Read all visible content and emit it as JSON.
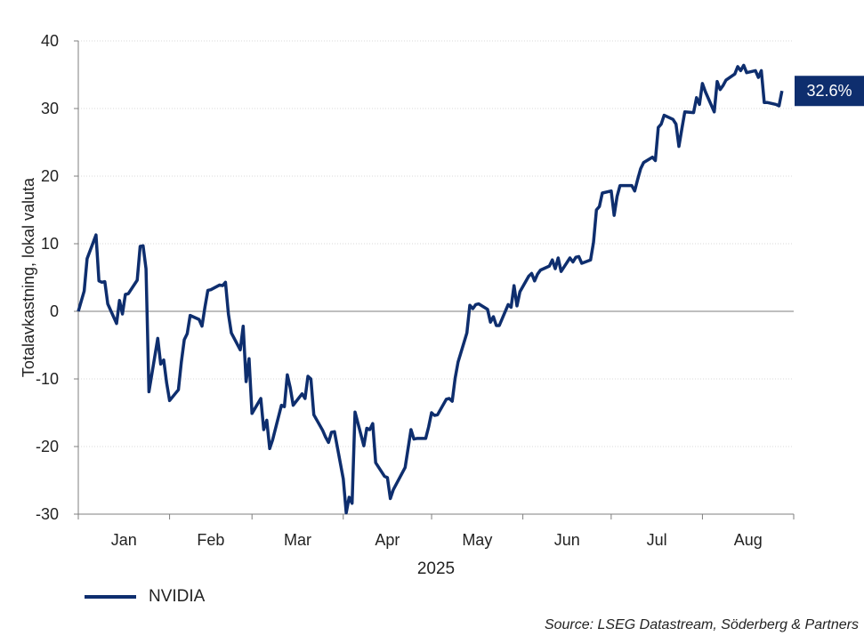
{
  "chart_data": {
    "type": "line",
    "ylabel": "Totalavkastning, lokal valuta",
    "xlabel": "2025",
    "ylim": [
      -30,
      40
    ],
    "yticks": [
      -30,
      -20,
      -10,
      0,
      10,
      20,
      30,
      40
    ],
    "ytick_labels": [
      "-30",
      "-20",
      "-10",
      "0",
      "10",
      "20",
      "30",
      "40"
    ],
    "x_ticks": [
      "Jan",
      "Feb",
      "Mar",
      "Apr",
      "May",
      "Jun",
      "Jul",
      "Aug"
    ],
    "grid": "horizontal",
    "zero_line": true,
    "legend_position": "bottom-left",
    "end_label": "32.6%",
    "series": [
      {
        "name": "NVIDIA",
        "color": "#0e2e6e",
        "points": [
          [
            "2024-12-31",
            0
          ],
          [
            "2025-01-02",
            3
          ],
          [
            "2025-01-03",
            7.8
          ],
          [
            "2025-01-06",
            11.3
          ],
          [
            "2025-01-07",
            4.5
          ],
          [
            "2025-01-08",
            4.3
          ],
          [
            "2025-01-09",
            4.4
          ],
          [
            "2025-01-10",
            1.1
          ],
          [
            "2025-01-13",
            -1.8
          ],
          [
            "2025-01-14",
            1.6
          ],
          [
            "2025-01-15",
            -0.4
          ],
          [
            "2025-01-16",
            2.5
          ],
          [
            "2025-01-17",
            2.6
          ],
          [
            "2025-01-20",
            4.6
          ],
          [
            "2025-01-21",
            9.6
          ],
          [
            "2025-01-22",
            9.7
          ],
          [
            "2025-01-23",
            6.3
          ],
          [
            "2025-01-24",
            -11.9
          ],
          [
            "2025-01-27",
            -4
          ],
          [
            "2025-01-28",
            -7.8
          ],
          [
            "2025-01-29",
            -7.2
          ],
          [
            "2025-01-30",
            -10.6
          ],
          [
            "2025-01-31",
            -13.2
          ],
          [
            "2025-02-03",
            -11.6
          ],
          [
            "2025-02-04",
            -7.5
          ],
          [
            "2025-02-05",
            -4.2
          ],
          [
            "2025-02-06",
            -3.3
          ],
          [
            "2025-02-07",
            -0.6
          ],
          [
            "2025-02-10",
            -1.2
          ],
          [
            "2025-02-11",
            -2.2
          ],
          [
            "2025-02-12",
            0.6
          ],
          [
            "2025-02-13",
            3.1
          ],
          [
            "2025-02-14",
            3.2
          ],
          [
            "2025-02-17",
            3.9
          ],
          [
            "2025-02-18",
            3.8
          ],
          [
            "2025-02-19",
            4.3
          ],
          [
            "2025-02-20",
            -0.4
          ],
          [
            "2025-02-21",
            -3.2
          ],
          [
            "2025-02-24",
            -5.7
          ],
          [
            "2025-02-25",
            -2.2
          ],
          [
            "2025-02-26",
            -10.4
          ],
          [
            "2025-02-27",
            -7
          ],
          [
            "2025-02-28",
            -15.1
          ],
          [
            "2025-03-03",
            -12.9
          ],
          [
            "2025-03-04",
            -17.5
          ],
          [
            "2025-03-05",
            -16.1
          ],
          [
            "2025-03-06",
            -20.3
          ],
          [
            "2025-03-07",
            -19
          ],
          [
            "2025-03-10",
            -13.9
          ],
          [
            "2025-03-11",
            -14.1
          ],
          [
            "2025-03-12",
            -9.4
          ],
          [
            "2025-03-13",
            -11.3
          ],
          [
            "2025-03-14",
            -13.9
          ],
          [
            "2025-03-17",
            -12.2
          ],
          [
            "2025-03-18",
            -12.9
          ],
          [
            "2025-03-19",
            -9.6
          ],
          [
            "2025-03-20",
            -10
          ],
          [
            "2025-03-21",
            -15.3
          ],
          [
            "2025-03-24",
            -17.6
          ],
          [
            "2025-03-25",
            -18.6
          ],
          [
            "2025-03-26",
            -19.4
          ],
          [
            "2025-03-27",
            -17.9
          ],
          [
            "2025-03-28",
            -17.8
          ],
          [
            "2025-03-31",
            -24.8
          ],
          [
            "2025-04-01",
            -29.8
          ],
          [
            "2025-04-02",
            -27.5
          ],
          [
            "2025-04-03",
            -28.4
          ],
          [
            "2025-04-04",
            -14.9
          ],
          [
            "2025-04-07",
            -19.9
          ],
          [
            "2025-04-08",
            -17.3
          ],
          [
            "2025-04-09",
            -17.5
          ],
          [
            "2025-04-10",
            -16.6
          ],
          [
            "2025-04-11",
            -22.4
          ],
          [
            "2025-04-14",
            -24.4
          ],
          [
            "2025-04-15",
            -24.6
          ],
          [
            "2025-04-16",
            -27.7
          ],
          [
            "2025-04-17",
            -26.4
          ],
          [
            "2025-04-21",
            -23.1
          ],
          [
            "2025-04-22",
            -20.3
          ],
          [
            "2025-04-23",
            -17.5
          ],
          [
            "2025-04-24",
            -18.9
          ],
          [
            "2025-04-25",
            -18.8
          ],
          [
            "2025-04-28",
            -18.8
          ],
          [
            "2025-04-29",
            -17.1
          ],
          [
            "2025-04-30",
            -15
          ],
          [
            "2025-05-01",
            -15.4
          ],
          [
            "2025-05-02",
            -15.3
          ],
          [
            "2025-05-05",
            -13
          ],
          [
            "2025-05-06",
            -12.9
          ],
          [
            "2025-05-07",
            -13.3
          ],
          [
            "2025-05-08",
            -9.9
          ],
          [
            "2025-05-09",
            -7.5
          ],
          [
            "2025-05-12",
            -3.2
          ],
          [
            "2025-05-13",
            0.9
          ],
          [
            "2025-05-14",
            0.4
          ],
          [
            "2025-05-15",
            1
          ],
          [
            "2025-05-16",
            1.1
          ],
          [
            "2025-05-19",
            0.3
          ],
          [
            "2025-05-20",
            -1.6
          ],
          [
            "2025-05-21",
            -0.8
          ],
          [
            "2025-05-22",
            -2.1
          ],
          [
            "2025-05-23",
            -2.1
          ],
          [
            "2025-05-26",
            1
          ],
          [
            "2025-05-27",
            0.6
          ],
          [
            "2025-05-28",
            3.8
          ],
          [
            "2025-05-29",
            0.8
          ],
          [
            "2025-05-30",
            2.9
          ],
          [
            "2025-06-02",
            5.2
          ],
          [
            "2025-06-03",
            5.6
          ],
          [
            "2025-06-04",
            4.5
          ],
          [
            "2025-06-05",
            5.5
          ],
          [
            "2025-06-06",
            6.1
          ],
          [
            "2025-06-09",
            6.7
          ],
          [
            "2025-06-10",
            7.6
          ],
          [
            "2025-06-11",
            6.3
          ],
          [
            "2025-06-12",
            7.9
          ],
          [
            "2025-06-13",
            5.9
          ],
          [
            "2025-06-16",
            7.9
          ],
          [
            "2025-06-17",
            7.3
          ],
          [
            "2025-06-18",
            8
          ],
          [
            "2025-06-19",
            8.1
          ],
          [
            "2025-06-20",
            7.1
          ],
          [
            "2025-06-23",
            7.6
          ],
          [
            "2025-06-24",
            10.2
          ],
          [
            "2025-06-25",
            15
          ],
          [
            "2025-06-26",
            15.5
          ],
          [
            "2025-06-27",
            17.5
          ],
          [
            "2025-06-30",
            17.8
          ],
          [
            "2025-07-01",
            14.2
          ],
          [
            "2025-07-02",
            17
          ],
          [
            "2025-07-03",
            18.6
          ],
          [
            "2025-07-07",
            18.6
          ],
          [
            "2025-07-08",
            17.8
          ],
          [
            "2025-07-09",
            19.5
          ],
          [
            "2025-07-10",
            21.1
          ],
          [
            "2025-07-11",
            22
          ],
          [
            "2025-07-14",
            22.8
          ],
          [
            "2025-07-15",
            22.3
          ],
          [
            "2025-07-16",
            27.2
          ],
          [
            "2025-07-17",
            27.7
          ],
          [
            "2025-07-18",
            29
          ],
          [
            "2025-07-21",
            28.4
          ],
          [
            "2025-07-22",
            27.7
          ],
          [
            "2025-07-23",
            24.4
          ],
          [
            "2025-07-24",
            27
          ],
          [
            "2025-07-25",
            29.5
          ],
          [
            "2025-07-28",
            29.4
          ],
          [
            "2025-07-29",
            31.6
          ],
          [
            "2025-07-30",
            30.6
          ],
          [
            "2025-07-31",
            33.7
          ],
          [
            "2025-08-01",
            32.5
          ],
          [
            "2025-08-04",
            29.5
          ],
          [
            "2025-08-05",
            34
          ],
          [
            "2025-08-06",
            32.8
          ],
          [
            "2025-08-07",
            33.4
          ],
          [
            "2025-08-08",
            34.2
          ],
          [
            "2025-08-11",
            35.1
          ],
          [
            "2025-08-12",
            36.2
          ],
          [
            "2025-08-13",
            35.6
          ],
          [
            "2025-08-14",
            36.4
          ],
          [
            "2025-08-15",
            35.3
          ],
          [
            "2025-08-18",
            35.6
          ],
          [
            "2025-08-19",
            34.6
          ],
          [
            "2025-08-20",
            35.6
          ],
          [
            "2025-08-21",
            30.9
          ],
          [
            "2025-08-22",
            30.9
          ],
          [
            "2025-08-25",
            30.6
          ],
          [
            "2025-08-26",
            30.4
          ],
          [
            "2025-08-27",
            32.6
          ]
        ]
      }
    ]
  },
  "source": "Source: LSEG Datastream, Söderberg & Partners"
}
